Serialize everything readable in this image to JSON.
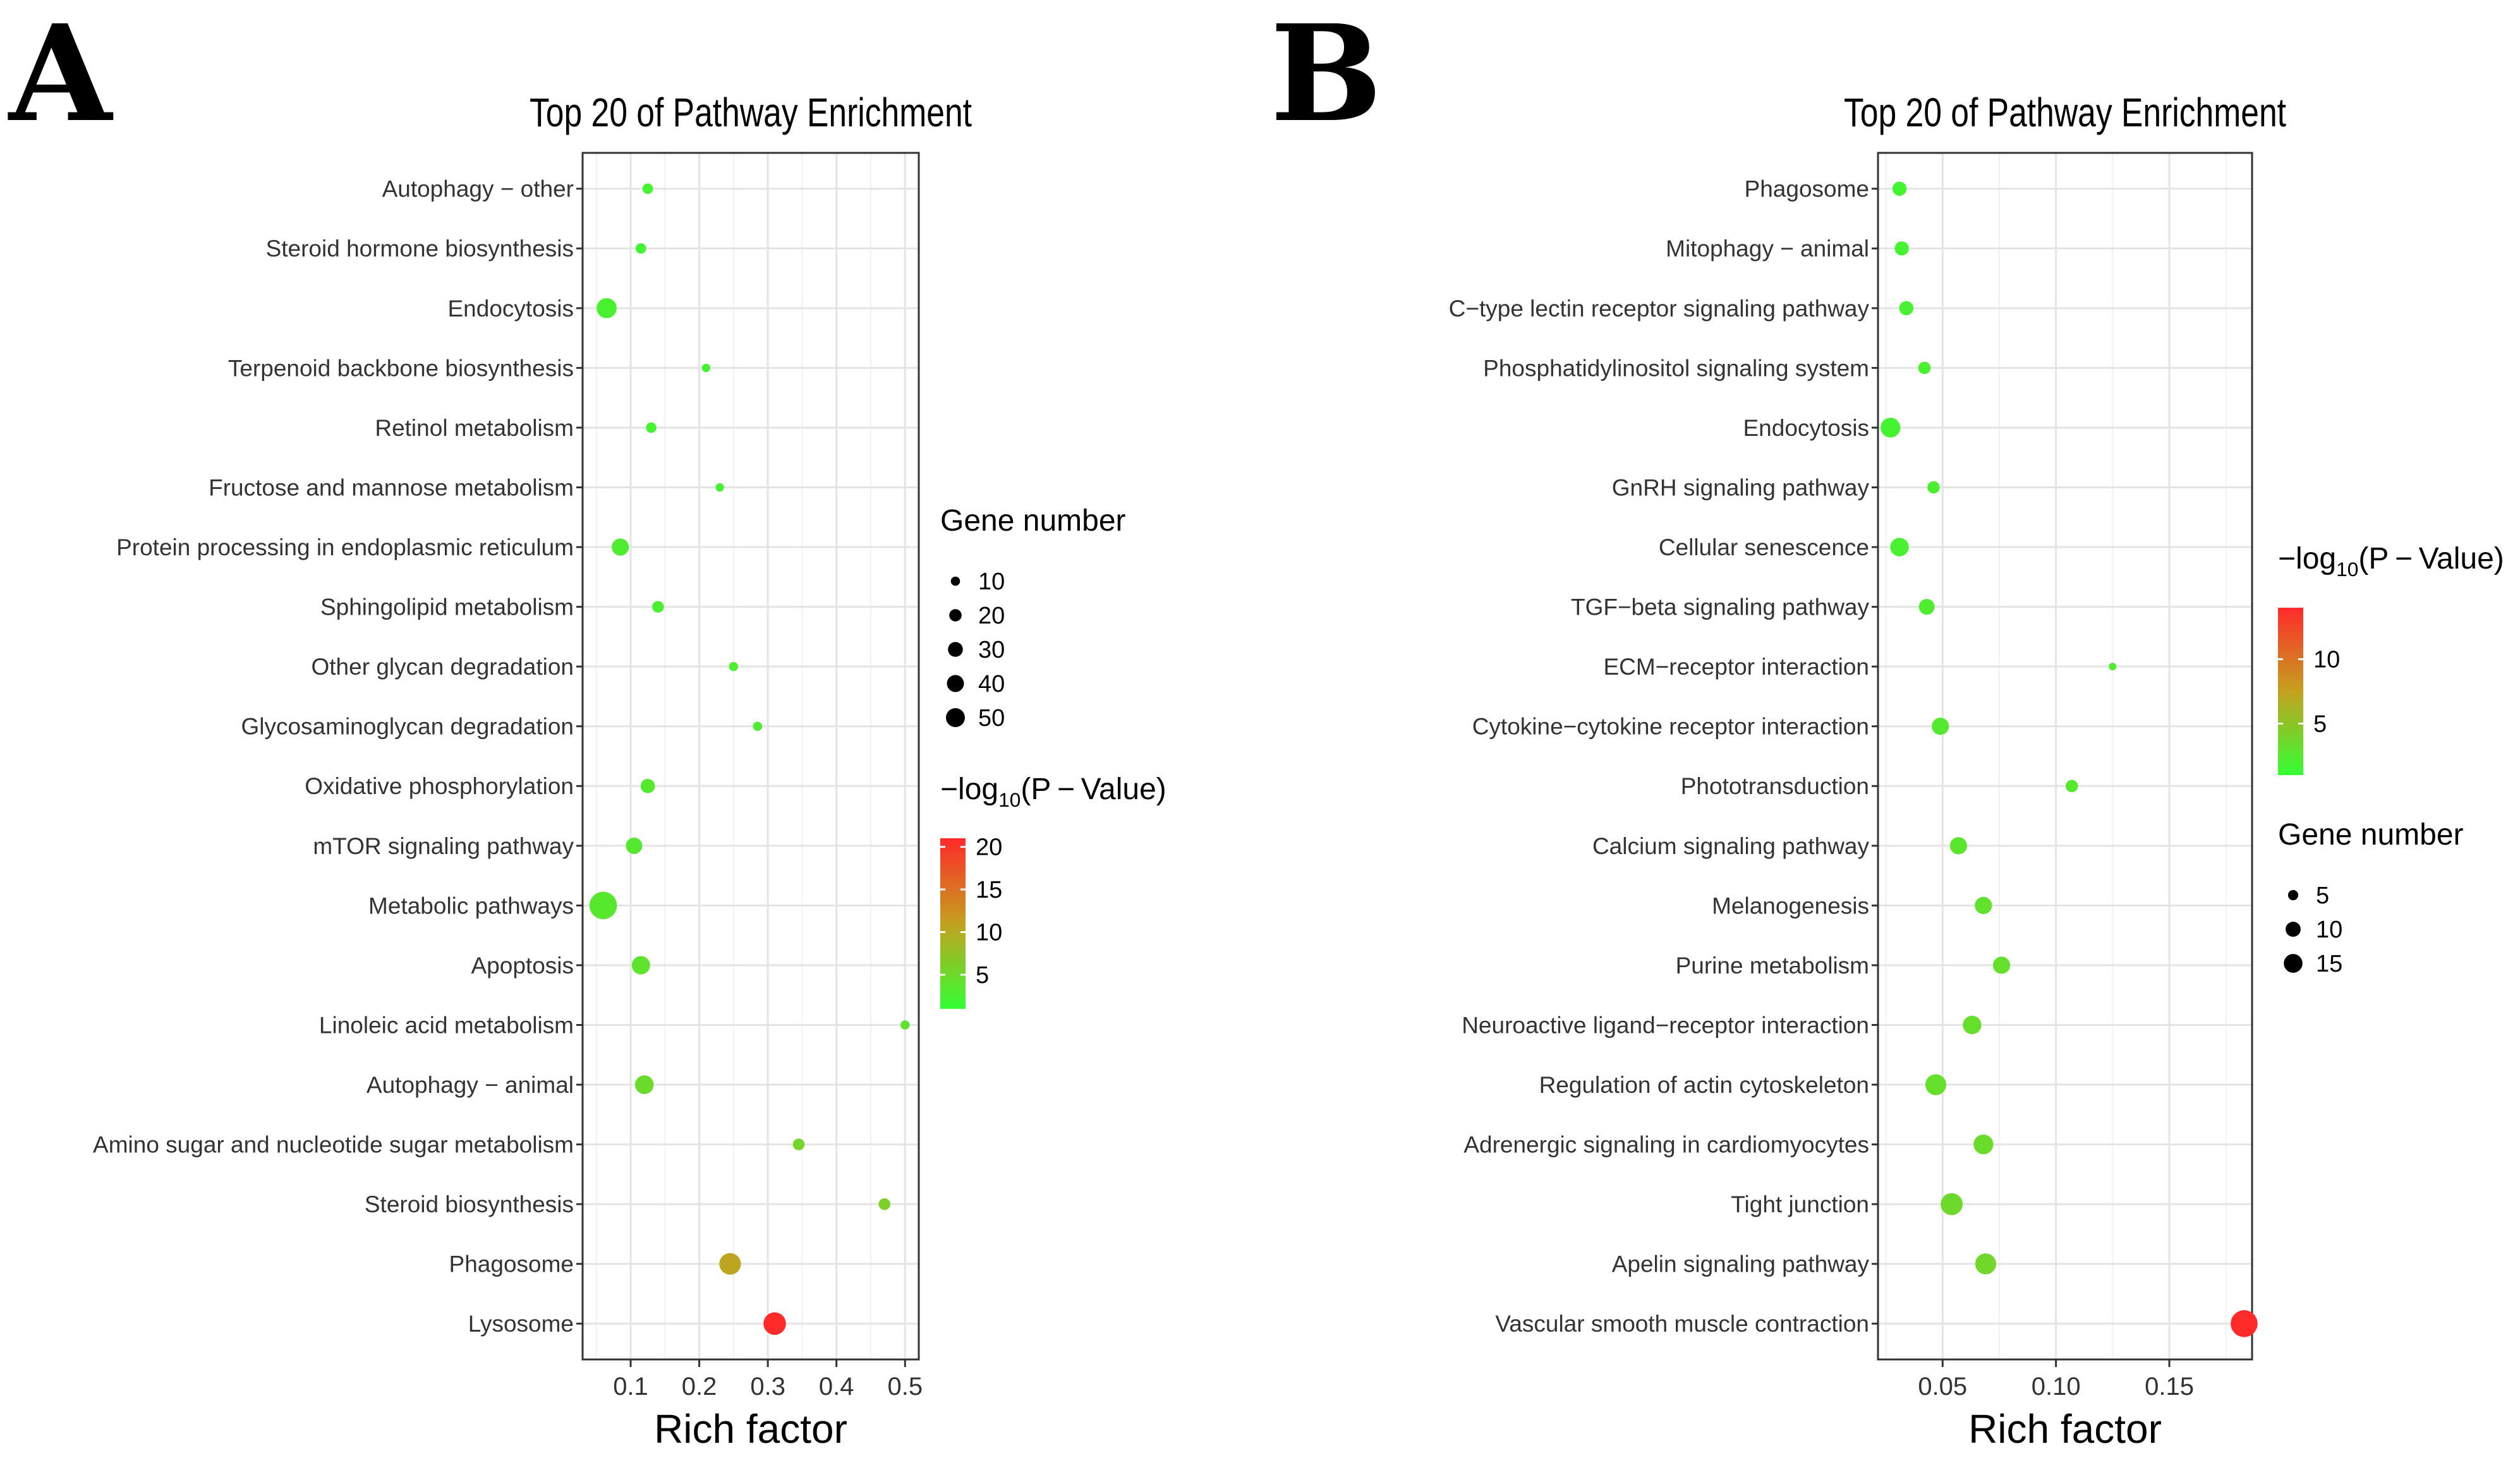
{
  "panels": [
    {
      "letter": "A",
      "chart_data": {
        "type": "scatter",
        "title": "Top 20 of Pathway Enrichment",
        "xlabel": "Rich factor",
        "ylabel": "",
        "xlim": [
          0.03,
          0.52
        ],
        "xticks": [
          0.1,
          0.2,
          0.3,
          0.4,
          0.5
        ],
        "xtick_labels": [
          "0.1",
          "0.2",
          "0.3",
          "0.4",
          "0.5"
        ],
        "grid": true,
        "legend_placement": "right",
        "color_legend": {
          "title_prefix": "−log",
          "title_sub": "10",
          "title_suffix": "(P − Value)",
          "min": 1,
          "max": 21,
          "ticks": [
            5,
            10,
            15,
            20
          ],
          "tick_labels": [
            "5",
            "10",
            "15",
            "20"
          ],
          "low_color": "#33ff33",
          "mid_color": "#c4a11e",
          "high_color": "#ff2a2a",
          "order": 2
        },
        "size_legend": {
          "title": "Gene number",
          "values": [
            10,
            20,
            30,
            40,
            50
          ],
          "labels": [
            "10",
            "20",
            "30",
            "40",
            "50"
          ],
          "order": 1
        },
        "size_range": [
          2,
          56
        ],
        "points": [
          {
            "pathway": "Autophagy − other",
            "rich_factor": 0.125,
            "gene_number": 6,
            "neg_log10_p": 2.2
          },
          {
            "pathway": "Steroid hormone biosynthesis",
            "rich_factor": 0.115,
            "gene_number": 6,
            "neg_log10_p": 2.0
          },
          {
            "pathway": "Endocytosis",
            "rich_factor": 0.065,
            "gene_number": 28,
            "neg_log10_p": 2.5
          },
          {
            "pathway": "Terpenoid backbone biosynthesis",
            "rich_factor": 0.21,
            "gene_number": 3,
            "neg_log10_p": 2.2
          },
          {
            "pathway": "Retinol metabolism",
            "rich_factor": 0.13,
            "gene_number": 6,
            "neg_log10_p": 2.3
          },
          {
            "pathway": "Fructose and mannose metabolism",
            "rich_factor": 0.23,
            "gene_number": 3,
            "neg_log10_p": 2.3
          },
          {
            "pathway": "Protein processing in endoplasmic reticulum",
            "rich_factor": 0.085,
            "gene_number": 20,
            "neg_log10_p": 3.0
          },
          {
            "pathway": "Sphingolipid metabolism",
            "rich_factor": 0.14,
            "gene_number": 8,
            "neg_log10_p": 2.7
          },
          {
            "pathway": "Other glycan degradation",
            "rich_factor": 0.25,
            "gene_number": 4,
            "neg_log10_p": 2.8
          },
          {
            "pathway": "Glycosaminoglycan degradation",
            "rich_factor": 0.285,
            "gene_number": 4,
            "neg_log10_p": 3.0
          },
          {
            "pathway": "Oxidative phosphorylation",
            "rich_factor": 0.125,
            "gene_number": 13,
            "neg_log10_p": 3.2
          },
          {
            "pathway": "mTOR signaling pathway",
            "rich_factor": 0.105,
            "gene_number": 18,
            "neg_log10_p": 3.3
          },
          {
            "pathway": "Metabolic pathways",
            "rich_factor": 0.06,
            "gene_number": 55,
            "neg_log10_p": 3.5
          },
          {
            "pathway": "Apoptosis",
            "rich_factor": 0.115,
            "gene_number": 23,
            "neg_log10_p": 4.0
          },
          {
            "pathway": "Linoleic acid metabolism",
            "rich_factor": 0.5,
            "gene_number": 4,
            "neg_log10_p": 4.2
          },
          {
            "pathway": "Autophagy − animal",
            "rich_factor": 0.12,
            "gene_number": 24,
            "neg_log10_p": 4.8
          },
          {
            "pathway": "Amino sugar and nucleotide sugar metabolism",
            "rich_factor": 0.345,
            "gene_number": 8,
            "neg_log10_p": 5.5
          },
          {
            "pathway": "Steroid biosynthesis",
            "rich_factor": 0.47,
            "gene_number": 8,
            "neg_log10_p": 6.0
          },
          {
            "pathway": "Phagosome",
            "rich_factor": 0.245,
            "gene_number": 33,
            "neg_log10_p": 10.5
          },
          {
            "pathway": "Lysosome",
            "rich_factor": 0.31,
            "gene_number": 36,
            "neg_log10_p": 21.0
          }
        ]
      }
    },
    {
      "letter": "B",
      "chart_data": {
        "type": "scatter",
        "title": "Top 20 of Pathway Enrichment",
        "xlabel": "Rich factor",
        "ylabel": "",
        "xlim": [
          0.0215,
          0.1865
        ],
        "xticks": [
          0.05,
          0.1,
          0.15
        ],
        "xtick_labels": [
          "0.05",
          "0.10",
          "0.15"
        ],
        "grid": true,
        "legend_placement": "right",
        "color_legend": {
          "title_prefix": "−log",
          "title_sub": "10",
          "title_suffix": "(P − Value)",
          "min": 1,
          "max": 14,
          "ticks": [
            5,
            10
          ],
          "tick_labels": [
            "5",
            "10"
          ],
          "low_color": "#33ff33",
          "mid_color": "#c4a11e",
          "high_color": "#ff2a2a",
          "order": 1
        },
        "size_legend": {
          "title": "Gene number",
          "values": [
            5,
            10,
            15
          ],
          "labels": [
            "5",
            "10",
            "15"
          ],
          "order": 2
        },
        "size_range": [
          2,
          17
        ],
        "points": [
          {
            "pathway": "Phagosome",
            "rich_factor": 0.031,
            "gene_number": 5,
            "neg_log10_p": 1.7
          },
          {
            "pathway": "Mitophagy − animal",
            "rich_factor": 0.032,
            "gene_number": 5,
            "neg_log10_p": 1.8
          },
          {
            "pathway": "C−type lectin receptor signaling pathway",
            "rich_factor": 0.034,
            "gene_number": 5,
            "neg_log10_p": 1.9
          },
          {
            "pathway": "Phosphatidylinositol signaling system",
            "rich_factor": 0.042,
            "gene_number": 4,
            "neg_log10_p": 2.0
          },
          {
            "pathway": "Endocytosis",
            "rich_factor": 0.027,
            "gene_number": 9,
            "neg_log10_p": 1.8
          },
          {
            "pathway": "GnRH signaling pathway",
            "rich_factor": 0.046,
            "gene_number": 4,
            "neg_log10_p": 2.1
          },
          {
            "pathway": "Cellular senescence",
            "rich_factor": 0.031,
            "gene_number": 8,
            "neg_log10_p": 2.0
          },
          {
            "pathway": "TGF−beta signaling pathway",
            "rich_factor": 0.043,
            "gene_number": 6,
            "neg_log10_p": 2.2
          },
          {
            "pathway": "ECM−receptor interaction",
            "rich_factor": 0.125,
            "gene_number": 2,
            "neg_log10_p": 2.3
          },
          {
            "pathway": "Cytokine−cytokine receptor interaction",
            "rich_factor": 0.049,
            "gene_number": 7,
            "neg_log10_p": 2.5
          },
          {
            "pathway": "Phototransduction",
            "rich_factor": 0.107,
            "gene_number": 4,
            "neg_log10_p": 2.6
          },
          {
            "pathway": "Calcium signaling pathway",
            "rich_factor": 0.057,
            "gene_number": 7,
            "neg_log10_p": 2.8
          },
          {
            "pathway": "Melanogenesis",
            "rich_factor": 0.068,
            "gene_number": 7,
            "neg_log10_p": 3.0
          },
          {
            "pathway": "Purine metabolism",
            "rich_factor": 0.076,
            "gene_number": 7,
            "neg_log10_p": 3.2
          },
          {
            "pathway": "Neuroactive ligand−receptor interaction",
            "rich_factor": 0.063,
            "gene_number": 8,
            "neg_log10_p": 3.3
          },
          {
            "pathway": "Regulation of actin cytoskeleton",
            "rich_factor": 0.047,
            "gene_number": 10,
            "neg_log10_p": 3.2
          },
          {
            "pathway": "Adrenergic signaling in cardiomyocytes",
            "rich_factor": 0.068,
            "gene_number": 9,
            "neg_log10_p": 3.5
          },
          {
            "pathway": "Tight junction",
            "rich_factor": 0.054,
            "gene_number": 11,
            "neg_log10_p": 3.6
          },
          {
            "pathway": "Apelin signaling pathway",
            "rich_factor": 0.069,
            "gene_number": 10,
            "neg_log10_p": 3.8
          },
          {
            "pathway": "Vascular smooth muscle contraction",
            "rich_factor": 0.183,
            "gene_number": 16,
            "neg_log10_p": 14.0
          }
        ]
      }
    }
  ]
}
